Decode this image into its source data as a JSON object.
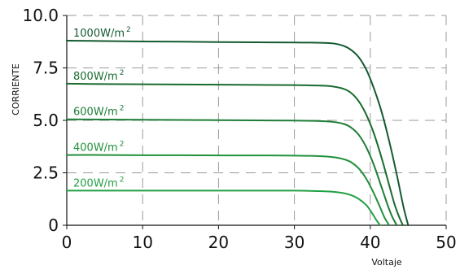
{
  "chart_data": {
    "type": "line",
    "xlabel": "Voltaje",
    "ylabel": "CORRIENTE",
    "xlim": [
      0,
      50
    ],
    "ylim": [
      0,
      10
    ],
    "x_ticks": [
      0,
      10,
      20,
      30,
      40,
      50
    ],
    "y_ticks": [
      0,
      2.5,
      5.0,
      7.5,
      10.0
    ],
    "x_tick_labels": [
      "0",
      "10",
      "20",
      "30",
      "40",
      "50"
    ],
    "y_tick_labels": [
      "0",
      "2.5",
      "5.0",
      "7.5",
      "10.0"
    ],
    "grid": true,
    "series": [
      {
        "name": "1000W/m²",
        "label_main": "1000W/m",
        "label_sup": "2",
        "color": "#145a32",
        "x": [
          0,
          5,
          10,
          15,
          20,
          25,
          30,
          33,
          35,
          36.5,
          37.5,
          38.5,
          39.5,
          40.5,
          41.5,
          42.5,
          43.5,
          44.3,
          44.7,
          45
        ],
        "y": [
          8.8,
          8.78,
          8.76,
          8.75,
          8.73,
          8.72,
          8.71,
          8.7,
          8.67,
          8.55,
          8.35,
          8.0,
          7.4,
          6.5,
          5.4,
          4.0,
          2.4,
          1.0,
          0.4,
          0
        ]
      },
      {
        "name": "800W/m²",
        "label_main": "800W/m",
        "label_sup": "2",
        "color": "#1a6b2e",
        "x": [
          0,
          5,
          10,
          15,
          20,
          25,
          30,
          33,
          35,
          36.5,
          37.5,
          38.5,
          39.5,
          40.5,
          41.5,
          42.5,
          43.2,
          43.8,
          44.3
        ],
        "y": [
          6.75,
          6.73,
          6.72,
          6.71,
          6.7,
          6.69,
          6.68,
          6.66,
          6.62,
          6.5,
          6.3,
          5.9,
          5.25,
          4.35,
          3.2,
          1.9,
          1.0,
          0.4,
          0
        ]
      },
      {
        "name": "600W/m²",
        "label_main": "600W/m",
        "label_sup": "2",
        "color": "#1e7d36",
        "x": [
          0,
          5,
          10,
          15,
          20,
          25,
          30,
          33,
          35,
          36.5,
          37.5,
          38.5,
          39.5,
          40.5,
          41.5,
          42.3,
          42.9,
          43.5
        ],
        "y": [
          5.05,
          5.04,
          5.03,
          5.02,
          5.01,
          5.0,
          4.99,
          4.97,
          4.93,
          4.83,
          4.65,
          4.3,
          3.7,
          2.85,
          1.8,
          0.95,
          0.4,
          0
        ]
      },
      {
        "name": "400W/m²",
        "label_main": "400W/m",
        "label_sup": "2",
        "color": "#21913c",
        "x": [
          0,
          5,
          10,
          15,
          20,
          25,
          30,
          33,
          35,
          36.5,
          37.5,
          38.5,
          39.5,
          40.5,
          41.3,
          41.9,
          42.5
        ],
        "y": [
          3.35,
          3.35,
          3.34,
          3.34,
          3.33,
          3.33,
          3.32,
          3.3,
          3.25,
          3.15,
          3.0,
          2.7,
          2.2,
          1.5,
          0.85,
          0.35,
          0
        ]
      },
      {
        "name": "200W/m²",
        "label_main": "200W/m",
        "label_sup": "2",
        "color": "#22a045",
        "x": [
          0,
          5,
          10,
          15,
          20,
          25,
          30,
          33,
          35,
          36.5,
          37.5,
          38.5,
          39.5,
          40.2,
          40.8,
          41.3
        ],
        "y": [
          1.65,
          1.65,
          1.65,
          1.65,
          1.65,
          1.65,
          1.65,
          1.63,
          1.6,
          1.53,
          1.43,
          1.25,
          0.95,
          0.6,
          0.25,
          0
        ]
      }
    ]
  }
}
